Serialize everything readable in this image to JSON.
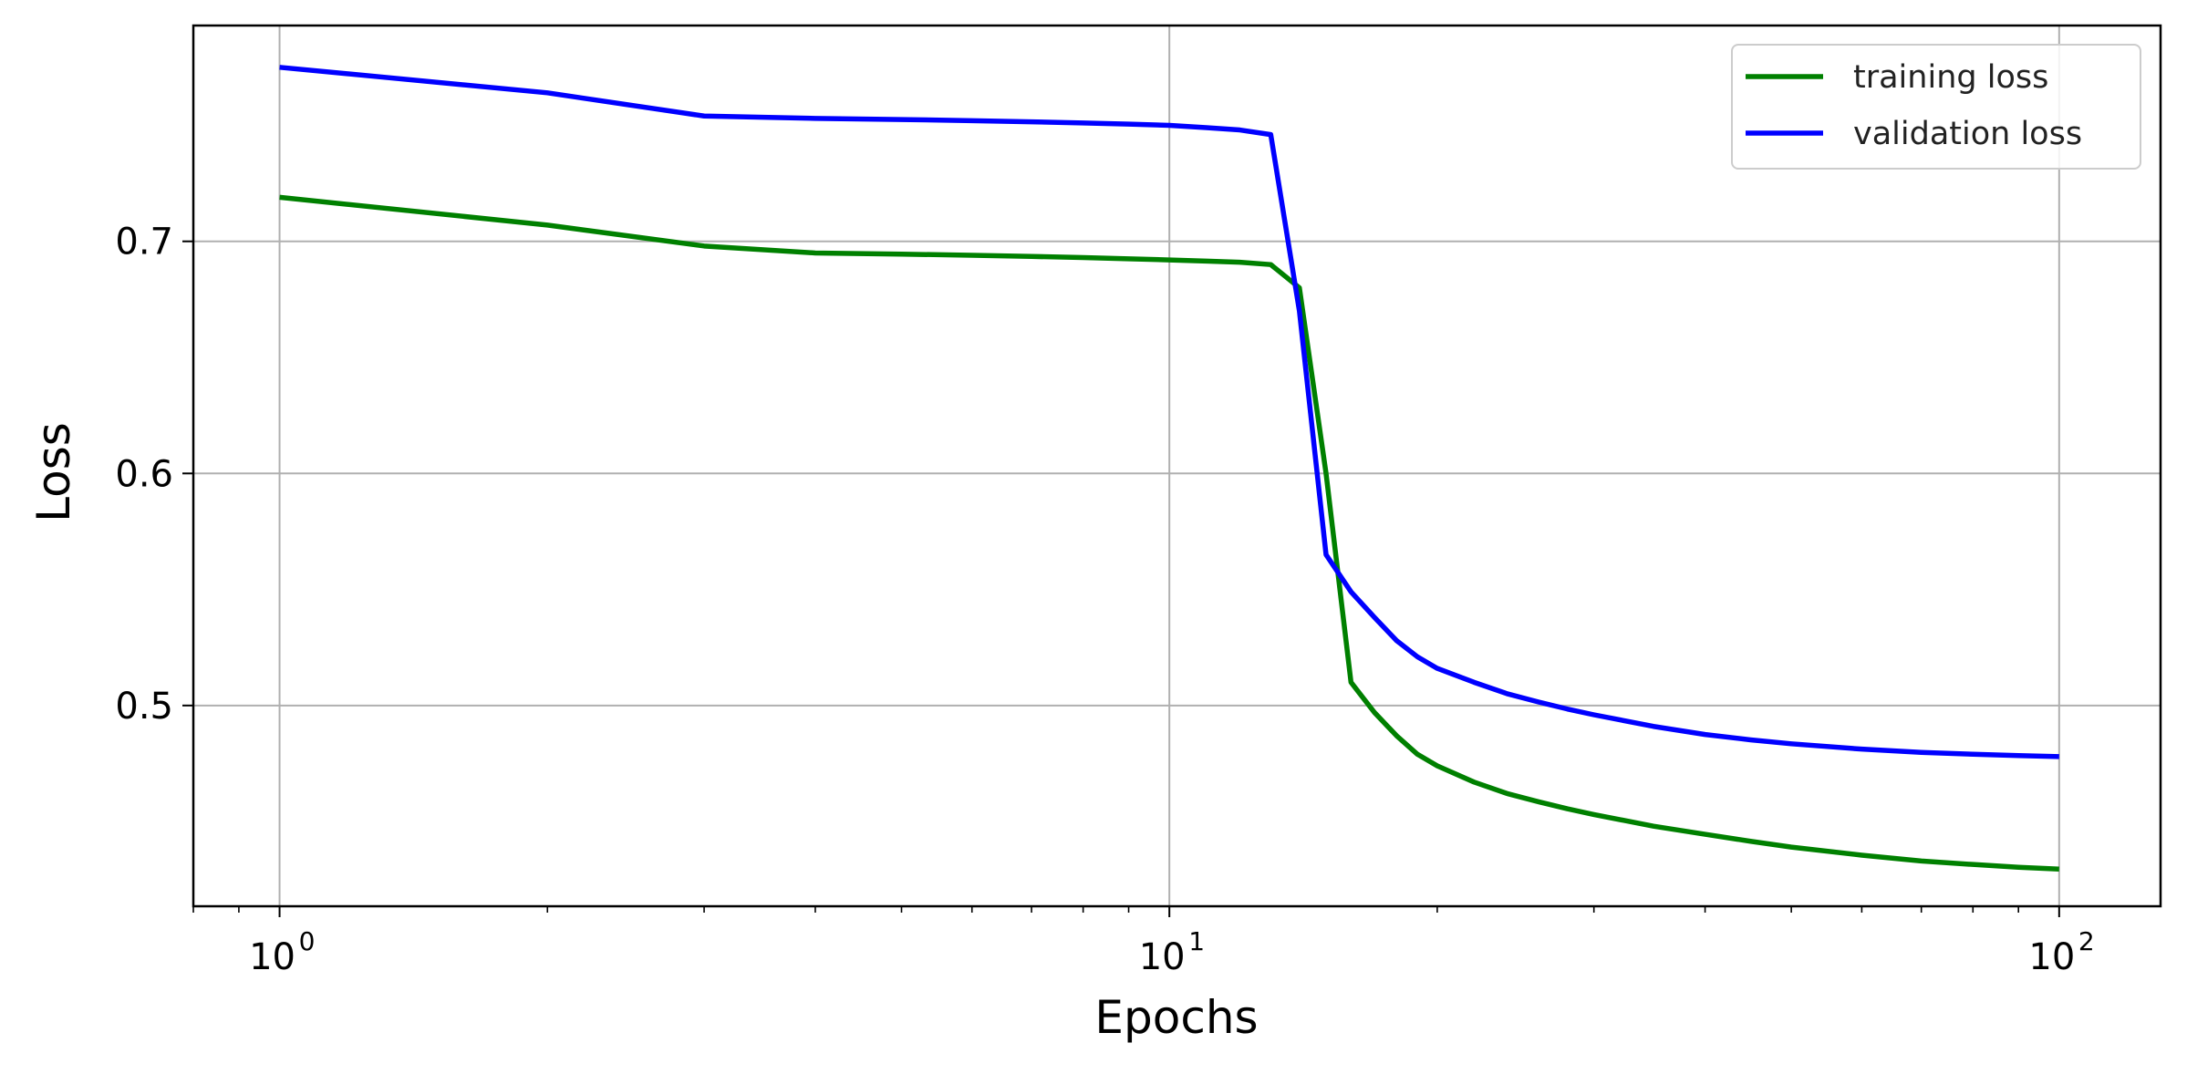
{
  "chart_data": {
    "type": "line",
    "title": "",
    "xlabel": "Epochs",
    "ylabel": "Loss",
    "xscale": "log",
    "xlim": [
      0.8,
      130
    ],
    "ylim": [
      0.4135,
      0.793
    ],
    "grid": true,
    "legend_position": "top-right",
    "x_ticks": [
      {
        "base": "10",
        "exp": "0",
        "value": 1
      },
      {
        "base": "10",
        "exp": "1",
        "value": 10
      },
      {
        "base": "10",
        "exp": "2",
        "value": 100
      }
    ],
    "y_ticks": [
      {
        "label": "0.5",
        "value": 0.5
      },
      {
        "label": "0.6",
        "value": 0.6
      },
      {
        "label": "0.7",
        "value": 0.7
      }
    ],
    "series": [
      {
        "name": "training loss",
        "color": "#008000",
        "x": [
          1,
          2,
          3,
          4,
          5,
          6,
          7,
          8,
          9,
          10,
          11,
          12,
          13,
          14,
          15,
          16,
          17,
          18,
          19,
          20,
          22,
          24,
          26,
          28,
          30,
          35,
          40,
          45,
          50,
          60,
          70,
          80,
          90,
          100
        ],
        "y": [
          0.719,
          0.707,
          0.698,
          0.695,
          0.6945,
          0.694,
          0.6935,
          0.693,
          0.6925,
          0.692,
          0.6915,
          0.691,
          0.69,
          0.68,
          0.6,
          0.51,
          0.497,
          0.487,
          0.479,
          0.474,
          0.467,
          0.462,
          0.4585,
          0.4555,
          0.453,
          0.448,
          0.4445,
          0.4415,
          0.439,
          0.4355,
          0.433,
          0.4315,
          0.4303,
          0.4295
        ]
      },
      {
        "name": "validation loss",
        "color": "#0000ff",
        "x": [
          1,
          2,
          3,
          4,
          5,
          6,
          7,
          8,
          9,
          10,
          11,
          12,
          13,
          14,
          15,
          16,
          17,
          18,
          19,
          20,
          22,
          24,
          26,
          28,
          30,
          35,
          40,
          45,
          50,
          60,
          70,
          80,
          90,
          100
        ],
        "y": [
          0.775,
          0.764,
          0.754,
          0.753,
          0.7525,
          0.752,
          0.7515,
          0.751,
          0.7505,
          0.75,
          0.749,
          0.748,
          0.746,
          0.67,
          0.565,
          0.549,
          0.538,
          0.528,
          0.521,
          0.516,
          0.51,
          0.505,
          0.5015,
          0.4985,
          0.496,
          0.491,
          0.4875,
          0.4852,
          0.4835,
          0.4812,
          0.4798,
          0.479,
          0.4784,
          0.478
        ]
      }
    ]
  }
}
